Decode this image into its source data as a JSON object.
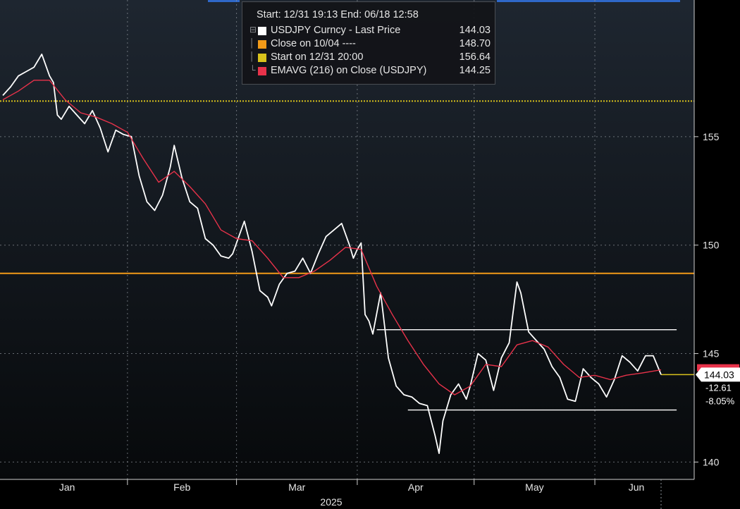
{
  "legend": {
    "header": "Start: 12/31 19:13 End: 06/18 12:58",
    "items": [
      {
        "label": "USDJPY Curncy - Last Price",
        "value": "144.03",
        "color": "#ffffff"
      },
      {
        "label": "Close on 10/04 ----",
        "value": "148.70",
        "color": "#f29a18"
      },
      {
        "label": "Start on 12/31 20:00",
        "value": "156.64",
        "color": "#d9c21c"
      },
      {
        "label": "EMAVG (216)  on Close (USDJPY)",
        "value": "144.25",
        "color": "#e8324a"
      }
    ]
  },
  "badges": {
    "price": "144.03",
    "change": "-12.61",
    "pct": "-8.05%"
  },
  "chart_data": {
    "type": "line",
    "title": "",
    "xlabel": "2025",
    "ylabel": "",
    "x_ticks": [
      "Jan",
      "Feb",
      "Mar",
      "Apr",
      "May",
      "Jun"
    ],
    "y_ticks": [
      140,
      145,
      150,
      155
    ],
    "ylim": [
      139.2,
      161.3
    ],
    "x_range": [
      "2024-12-31",
      "2025-06-18"
    ],
    "grid": true,
    "legend_position": "top-center",
    "series": [
      {
        "name": "USDJPY Curncy - Last Price",
        "color": "#ffffff",
        "points": [
          [
            "2024-12-31",
            156.9
          ],
          [
            "2025-01-02",
            157.3
          ],
          [
            "2025-01-04",
            157.8
          ],
          [
            "2025-01-06",
            158.0
          ],
          [
            "2025-01-08",
            158.2
          ],
          [
            "2025-01-10",
            158.8
          ],
          [
            "2025-01-12",
            157.8
          ],
          [
            "2025-01-13",
            157.5
          ],
          [
            "2025-01-14",
            156.0
          ],
          [
            "2025-01-15",
            155.8
          ],
          [
            "2025-01-17",
            156.4
          ],
          [
            "2025-01-19",
            156.0
          ],
          [
            "2025-01-21",
            155.6
          ],
          [
            "2025-01-23",
            156.2
          ],
          [
            "2025-01-25",
            155.4
          ],
          [
            "2025-01-27",
            154.3
          ],
          [
            "2025-01-29",
            155.3
          ],
          [
            "2025-01-31",
            155.1
          ],
          [
            "2025-02-02",
            155.0
          ],
          [
            "2025-02-04",
            153.2
          ],
          [
            "2025-02-06",
            152.0
          ],
          [
            "2025-02-08",
            151.6
          ],
          [
            "2025-02-10",
            152.3
          ],
          [
            "2025-02-12",
            153.6
          ],
          [
            "2025-02-13",
            154.6
          ],
          [
            "2025-02-15",
            153.1
          ],
          [
            "2025-02-17",
            152.0
          ],
          [
            "2025-02-19",
            151.7
          ],
          [
            "2025-02-21",
            150.3
          ],
          [
            "2025-02-23",
            150.0
          ],
          [
            "2025-02-25",
            149.5
          ],
          [
            "2025-02-27",
            149.4
          ],
          [
            "2025-02-28",
            149.6
          ],
          [
            "2025-03-03",
            151.1
          ],
          [
            "2025-03-05",
            149.7
          ],
          [
            "2025-03-07",
            147.9
          ],
          [
            "2025-03-09",
            147.6
          ],
          [
            "2025-03-10",
            147.2
          ],
          [
            "2025-03-12",
            148.2
          ],
          [
            "2025-03-14",
            148.7
          ],
          [
            "2025-03-16",
            148.8
          ],
          [
            "2025-03-18",
            149.4
          ],
          [
            "2025-03-20",
            148.7
          ],
          [
            "2025-03-22",
            149.6
          ],
          [
            "2025-03-24",
            150.4
          ],
          [
            "2025-03-26",
            150.7
          ],
          [
            "2025-03-28",
            151.0
          ],
          [
            "2025-03-30",
            150.0
          ],
          [
            "2025-03-31",
            149.4
          ],
          [
            "2025-04-01",
            149.8
          ],
          [
            "2025-04-02",
            150.1
          ],
          [
            "2025-04-03",
            146.8
          ],
          [
            "2025-04-04",
            146.5
          ],
          [
            "2025-04-05",
            145.9
          ],
          [
            "2025-04-07",
            147.8
          ],
          [
            "2025-04-09",
            144.8
          ],
          [
            "2025-04-11",
            143.5
          ],
          [
            "2025-04-13",
            143.1
          ],
          [
            "2025-04-15",
            143.0
          ],
          [
            "2025-04-17",
            142.7
          ],
          [
            "2025-04-19",
            142.6
          ],
          [
            "2025-04-21",
            141.2
          ],
          [
            "2025-04-22",
            140.4
          ],
          [
            "2025-04-23",
            141.9
          ],
          [
            "2025-04-25",
            143.1
          ],
          [
            "2025-04-27",
            143.6
          ],
          [
            "2025-04-29",
            142.9
          ],
          [
            "2025-04-30",
            143.5
          ],
          [
            "2025-05-02",
            145.0
          ],
          [
            "2025-05-04",
            144.7
          ],
          [
            "2025-05-06",
            143.3
          ],
          [
            "2025-05-08",
            144.8
          ],
          [
            "2025-05-10",
            145.5
          ],
          [
            "2025-05-12",
            148.3
          ],
          [
            "2025-05-13",
            147.8
          ],
          [
            "2025-05-15",
            146.0
          ],
          [
            "2025-05-17",
            145.6
          ],
          [
            "2025-05-19",
            145.2
          ],
          [
            "2025-05-21",
            144.4
          ],
          [
            "2025-05-23",
            143.9
          ],
          [
            "2025-05-25",
            142.9
          ],
          [
            "2025-05-27",
            142.8
          ],
          [
            "2025-05-29",
            144.3
          ],
          [
            "2025-05-31",
            143.9
          ],
          [
            "2025-06-02",
            143.6
          ],
          [
            "2025-06-04",
            143.0
          ],
          [
            "2025-06-06",
            143.8
          ],
          [
            "2025-06-08",
            144.9
          ],
          [
            "2025-06-10",
            144.6
          ],
          [
            "2025-06-12",
            144.2
          ],
          [
            "2025-06-14",
            144.9
          ],
          [
            "2025-06-16",
            144.9
          ],
          [
            "2025-06-18",
            144.03
          ]
        ]
      },
      {
        "name": "EMAVG (216)  on Close (USDJPY)",
        "color": "#e8324a",
        "points": [
          [
            "2024-12-31",
            156.7
          ],
          [
            "2025-01-04",
            157.1
          ],
          [
            "2025-01-08",
            157.6
          ],
          [
            "2025-01-12",
            157.6
          ],
          [
            "2025-01-16",
            156.7
          ],
          [
            "2025-01-20",
            156.1
          ],
          [
            "2025-01-24",
            155.9
          ],
          [
            "2025-01-28",
            155.6
          ],
          [
            "2025-02-01",
            155.2
          ],
          [
            "2025-02-05",
            154.0
          ],
          [
            "2025-02-09",
            152.9
          ],
          [
            "2025-02-13",
            153.4
          ],
          [
            "2025-02-17",
            152.7
          ],
          [
            "2025-02-21",
            151.9
          ],
          [
            "2025-02-25",
            150.7
          ],
          [
            "2025-03-01",
            150.3
          ],
          [
            "2025-03-05",
            150.2
          ],
          [
            "2025-03-09",
            149.4
          ],
          [
            "2025-03-13",
            148.5
          ],
          [
            "2025-03-17",
            148.5
          ],
          [
            "2025-03-21",
            148.8
          ],
          [
            "2025-03-25",
            149.3
          ],
          [
            "2025-03-29",
            149.9
          ],
          [
            "2025-04-02",
            149.8
          ],
          [
            "2025-04-06",
            148.1
          ],
          [
            "2025-04-10",
            146.8
          ],
          [
            "2025-04-14",
            145.6
          ],
          [
            "2025-04-18",
            144.5
          ],
          [
            "2025-04-22",
            143.6
          ],
          [
            "2025-04-26",
            143.1
          ],
          [
            "2025-04-30",
            143.5
          ],
          [
            "2025-05-04",
            144.5
          ],
          [
            "2025-05-08",
            144.4
          ],
          [
            "2025-05-12",
            145.4
          ],
          [
            "2025-05-16",
            145.6
          ],
          [
            "2025-05-20",
            145.3
          ],
          [
            "2025-05-24",
            144.5
          ],
          [
            "2025-05-28",
            143.9
          ],
          [
            "2025-06-01",
            144.0
          ],
          [
            "2025-06-05",
            143.8
          ],
          [
            "2025-06-09",
            144.0
          ],
          [
            "2025-06-13",
            144.1
          ],
          [
            "2025-06-18",
            144.25
          ]
        ]
      }
    ],
    "reference_lines": [
      {
        "label": "Close on 10/04",
        "value": 148.7,
        "color": "#f29a18",
        "style": "solid"
      },
      {
        "label": "Start on 12/31 20:00",
        "value": 156.64,
        "color": "#d9c21c",
        "style": "dotted"
      }
    ],
    "support_lines": [
      {
        "value": 146.1,
        "from": "2025-04-06",
        "to": "2025-06-22"
      },
      {
        "value": 142.4,
        "from": "2025-04-14",
        "to": "2025-06-22"
      }
    ]
  }
}
